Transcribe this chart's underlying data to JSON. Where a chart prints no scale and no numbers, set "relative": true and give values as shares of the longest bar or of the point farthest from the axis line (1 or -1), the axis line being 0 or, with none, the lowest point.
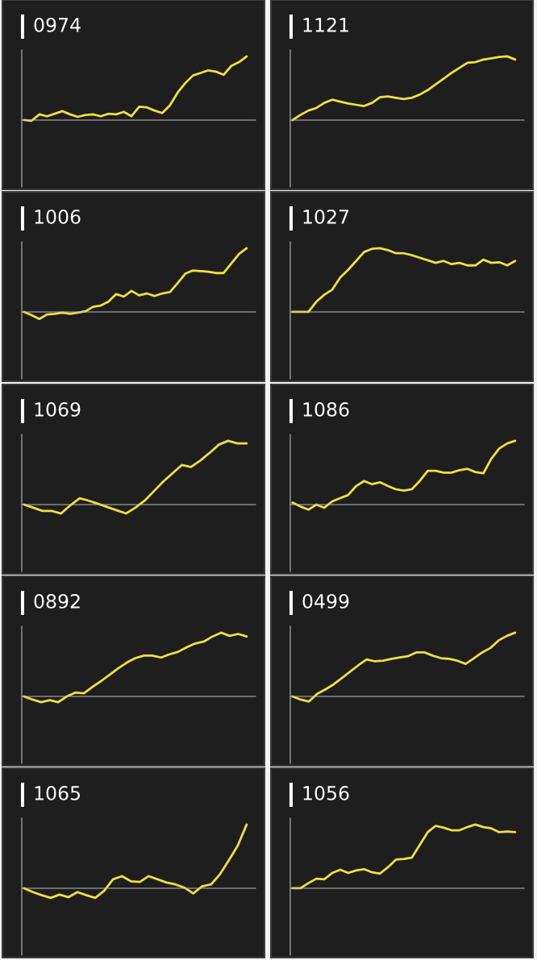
{
  "chart_data": [
    {
      "type": "line",
      "title": "0974",
      "relative": true,
      "tick_labels": false,
      "categories": [
        null,
        null,
        null,
        null,
        null,
        null,
        null,
        null,
        null,
        null,
        null,
        null,
        null,
        null,
        null,
        null,
        null,
        null,
        null,
        null,
        null,
        null,
        null,
        null,
        null,
        null,
        null,
        null,
        null,
        null
      ],
      "series": [
        {
          "color": "#f0e040",
          "values": [
            0,
            -0.01,
            0.09,
            0.06,
            0.1,
            0.14,
            0.09,
            0.05,
            0.08,
            0.09,
            0.06,
            0.1,
            0.09,
            0.13,
            0.06,
            0.21,
            0.2,
            0.15,
            0.11,
            0.23,
            0.43,
            0.58,
            0.7,
            0.74,
            0.78,
            0.76,
            0.71,
            0.85,
            0.91,
            1
          ]
        }
      ]
    },
    {
      "type": "line",
      "title": "1121",
      "relative": true,
      "tick_labels": false,
      "categories": [
        null,
        null,
        null,
        null,
        null,
        null,
        null,
        null,
        null,
        null,
        null,
        null,
        null,
        null,
        null,
        null,
        null,
        null,
        null,
        null,
        null,
        null,
        null,
        null,
        null,
        null,
        null,
        null,
        null
      ],
      "series": [
        {
          "color": "#f0e040",
          "values": [
            0,
            0.08,
            0.15,
            0.19,
            0.27,
            0.32,
            0.29,
            0.26,
            0.24,
            0.22,
            0.27,
            0.36,
            0.37,
            0.35,
            0.33,
            0.35,
            0.4,
            0.47,
            0.56,
            0.65,
            0.74,
            0.82,
            0.9,
            0.91,
            0.95,
            0.97,
            0.99,
            1,
            0.95
          ]
        }
      ]
    },
    {
      "type": "line",
      "title": "1006",
      "relative": true,
      "tick_labels": false,
      "categories": [
        null,
        null,
        null,
        null,
        null,
        null,
        null,
        null,
        null,
        null,
        null,
        null,
        null,
        null,
        null,
        null,
        null,
        null,
        null,
        null,
        null,
        null,
        null,
        null,
        null,
        null,
        null,
        null,
        null,
        null
      ],
      "series": [
        {
          "color": "#f0e040",
          "values": [
            0,
            -0.05,
            -0.11,
            -0.04,
            -0.03,
            -0.01,
            -0.03,
            -0.01,
            0.01,
            0.08,
            0.1,
            0.16,
            0.28,
            0.24,
            0.33,
            0.26,
            0.29,
            0.25,
            0.29,
            0.31,
            0.45,
            0.6,
            0.65,
            0.64,
            0.63,
            0.61,
            0.61,
            0.76,
            0.91,
            1
          ]
        }
      ]
    },
    {
      "type": "line",
      "title": "1027",
      "relative": true,
      "tick_labels": false,
      "categories": [
        null,
        null,
        null,
        null,
        null,
        null,
        null,
        null,
        null,
        null,
        null,
        null,
        null,
        null,
        null,
        null,
        null,
        null,
        null,
        null,
        null,
        null,
        null,
        null,
        null,
        null,
        null,
        null,
        null
      ],
      "series": [
        {
          "color": "#f0e040",
          "values": [
            0,
            0,
            0,
            0.16,
            0.27,
            0.35,
            0.54,
            0.66,
            0.8,
            0.94,
            0.99,
            1,
            0.97,
            0.92,
            0.92,
            0.89,
            0.85,
            0.81,
            0.77,
            0.8,
            0.75,
            0.77,
            0.73,
            0.73,
            0.82,
            0.77,
            0.78,
            0.73,
            0.8
          ]
        }
      ]
    },
    {
      "type": "line",
      "title": "1069",
      "relative": true,
      "tick_labels": false,
      "categories": [
        null,
        null,
        null,
        null,
        null,
        null,
        null,
        null,
        null,
        null,
        null,
        null,
        null,
        null,
        null,
        null,
        null,
        null,
        null,
        null,
        null,
        null,
        null,
        null,
        null
      ],
      "series": [
        {
          "color": "#f0e040",
          "values": [
            0,
            -0.05,
            -0.1,
            -0.1,
            -0.14,
            -0.01,
            0.1,
            0.06,
            0.01,
            -0.04,
            -0.09,
            -0.14,
            -0.05,
            0.06,
            0.21,
            0.36,
            0.49,
            0.62,
            0.59,
            0.69,
            0.81,
            0.94,
            1,
            0.96,
            0.96
          ]
        }
      ]
    },
    {
      "type": "line",
      "title": "1086",
      "relative": true,
      "tick_labels": false,
      "categories": [
        null,
        null,
        null,
        null,
        null,
        null,
        null,
        null,
        null,
        null,
        null,
        null,
        null,
        null,
        null,
        null,
        null,
        null,
        null,
        null,
        null,
        null,
        null,
        null,
        null,
        null,
        null,
        null,
        null
      ],
      "series": [
        {
          "color": "#f0e040",
          "values": [
            0.03,
            -0.03,
            -0.08,
            0,
            -0.05,
            0.05,
            0.1,
            0.15,
            0.29,
            0.37,
            0.32,
            0.35,
            0.29,
            0.24,
            0.22,
            0.24,
            0.37,
            0.53,
            0.53,
            0.5,
            0.5,
            0.54,
            0.56,
            0.51,
            0.49,
            0.72,
            0.88,
            0.96,
            1
          ]
        }
      ]
    },
    {
      "type": "line",
      "title": "0892",
      "relative": true,
      "tick_labels": false,
      "categories": [
        null,
        null,
        null,
        null,
        null,
        null,
        null,
        null,
        null,
        null,
        null,
        null,
        null,
        null,
        null,
        null,
        null,
        null,
        null,
        null,
        null,
        null,
        null,
        null,
        null,
        null,
        null
      ],
      "series": [
        {
          "color": "#f0e040",
          "values": [
            0,
            -0.05,
            -0.09,
            -0.06,
            -0.09,
            0,
            0.06,
            0.05,
            0.15,
            0.24,
            0.34,
            0.44,
            0.53,
            0.6,
            0.64,
            0.64,
            0.61,
            0.66,
            0.7,
            0.77,
            0.83,
            0.86,
            0.94,
            1,
            0.95,
            0.98,
            0.94
          ]
        }
      ]
    },
    {
      "type": "line",
      "title": "0499",
      "relative": true,
      "tick_labels": false,
      "categories": [
        null,
        null,
        null,
        null,
        null,
        null,
        null,
        null,
        null,
        null,
        null,
        null,
        null,
        null,
        null,
        null,
        null,
        null,
        null,
        null,
        null,
        null,
        null,
        null,
        null,
        null,
        null,
        null
      ],
      "series": [
        {
          "color": "#f0e040",
          "values": [
            0,
            -0.05,
            -0.08,
            0.04,
            0.11,
            0.19,
            0.29,
            0.39,
            0.49,
            0.58,
            0.55,
            0.56,
            0.59,
            0.61,
            0.63,
            0.69,
            0.69,
            0.64,
            0.6,
            0.59,
            0.56,
            0.51,
            0.6,
            0.69,
            0.76,
            0.88,
            0.95,
            1
          ]
        }
      ]
    },
    {
      "type": "line",
      "title": "1065",
      "relative": true,
      "tick_labels": false,
      "categories": [
        null,
        null,
        null,
        null,
        null,
        null,
        null,
        null,
        null,
        null,
        null,
        null,
        null,
        null,
        null,
        null,
        null,
        null,
        null,
        null,
        null,
        null,
        null,
        null,
        null,
        null
      ],
      "series": [
        {
          "color": "#f0e040",
          "values": [
            0,
            -0.06,
            -0.11,
            -0.15,
            -0.1,
            -0.14,
            -0.06,
            -0.11,
            -0.15,
            -0.04,
            0.14,
            0.19,
            0.11,
            0.1,
            0.19,
            0.14,
            0.09,
            0.06,
            0.01,
            -0.08,
            0.03,
            0.06,
            0.22,
            0.44,
            0.67,
            1
          ]
        }
      ]
    },
    {
      "type": "line",
      "title": "1056",
      "relative": true,
      "tick_labels": false,
      "categories": [
        null,
        null,
        null,
        null,
        null,
        null,
        null,
        null,
        null,
        null,
        null,
        null,
        null,
        null,
        null,
        null,
        null,
        null,
        null,
        null,
        null,
        null,
        null,
        null,
        null,
        null,
        null,
        null,
        null
      ],
      "series": [
        {
          "color": "#f0e040",
          "values": [
            0,
            0,
            0.08,
            0.15,
            0.14,
            0.24,
            0.29,
            0.24,
            0.28,
            0.3,
            0.25,
            0.23,
            0.33,
            0.45,
            0.46,
            0.48,
            0.68,
            0.88,
            0.98,
            0.95,
            0.91,
            0.91,
            0.96,
            1,
            0.96,
            0.94,
            0.88,
            0.89,
            0.88
          ]
        }
      ]
    }
  ]
}
